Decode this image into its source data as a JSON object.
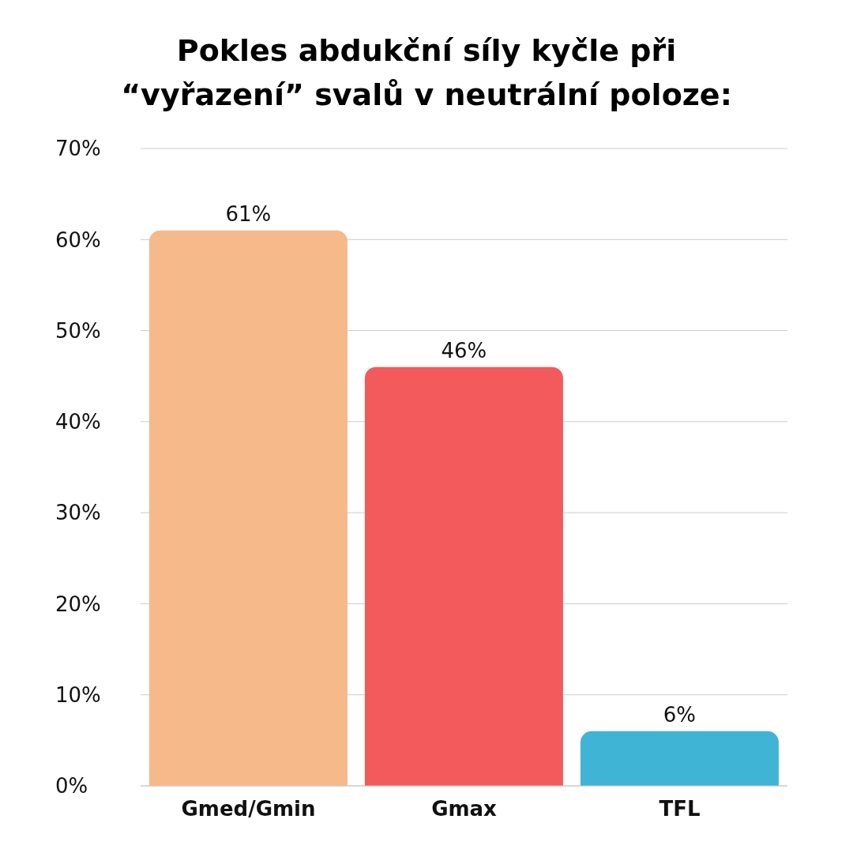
{
  "chart_data": {
    "type": "bar",
    "title": "Pokles abdukční síly kyčle při “vyřazení” svalů v neutrální poloze:",
    "categories": [
      "Gmed/Gmin",
      "Gmax",
      "TFL"
    ],
    "values": [
      61,
      46,
      6
    ],
    "colors": [
      "#f6b98a",
      "#f25a5c",
      "#40b4d4"
    ],
    "value_labels": [
      "61%",
      "46%",
      "6%"
    ],
    "ylim": [
      0,
      70
    ],
    "yticks": [
      {
        "value": 0,
        "label": "0%"
      },
      {
        "value": 10,
        "label": "10%"
      },
      {
        "value": 20,
        "label": "20%"
      },
      {
        "value": 30,
        "label": "30%"
      },
      {
        "value": 40,
        "label": "40%"
      },
      {
        "value": 50,
        "label": "50%"
      },
      {
        "value": 60,
        "label": "60%"
      },
      {
        "value": 70,
        "label": "70%"
      }
    ],
    "grid": "y"
  }
}
